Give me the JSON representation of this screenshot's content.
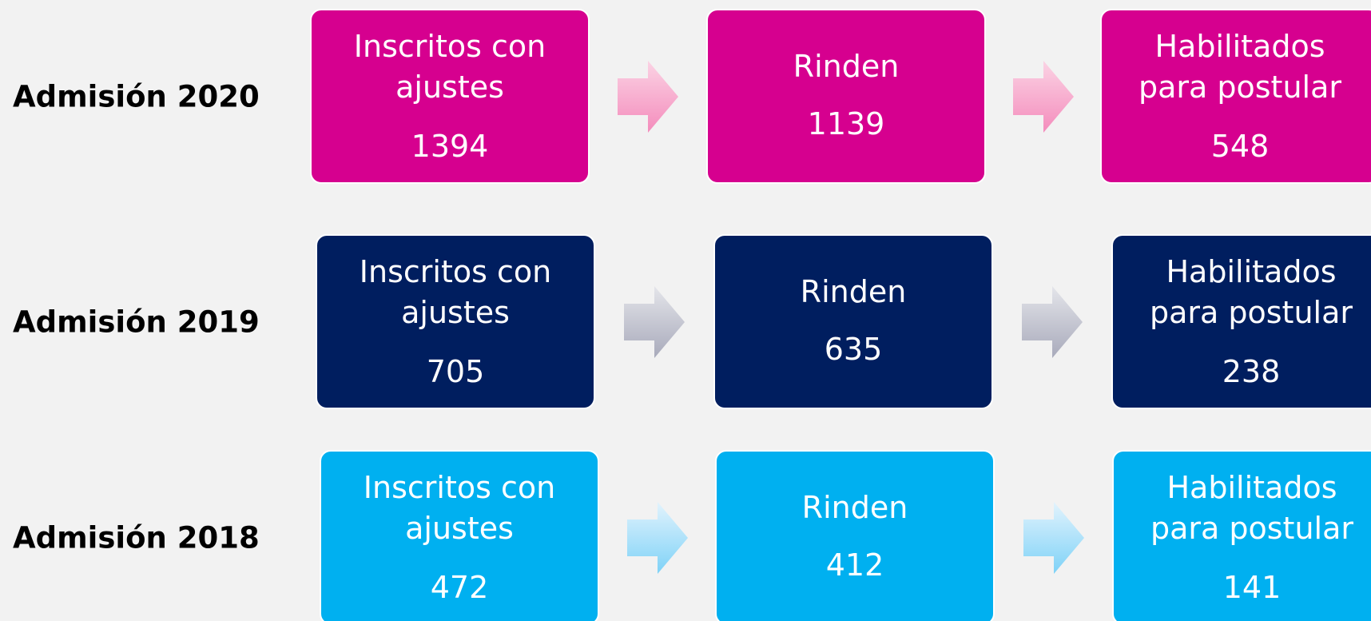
{
  "rows": [
    {
      "label": "Admisión 2020",
      "color": "#d6008f",
      "steps": [
        {
          "lines": [
            "Inscritos con",
            "ajustes"
          ],
          "value": "1394"
        },
        {
          "lines": [
            "Rinden"
          ],
          "value": "1139"
        },
        {
          "lines": [
            "Habilitados",
            "para postular"
          ],
          "value": "548"
        }
      ]
    },
    {
      "label": "Admisión 2019",
      "color": "#001e5f",
      "steps": [
        {
          "lines": [
            "Inscritos con",
            "ajustes"
          ],
          "value": "705"
        },
        {
          "lines": [
            "Rinden"
          ],
          "value": "635"
        },
        {
          "lines": [
            "Habilitados",
            "para postular"
          ],
          "value": "238"
        }
      ]
    },
    {
      "label": "Admisión 2018",
      "color": "#00b0f0",
      "steps": [
        {
          "lines": [
            "Inscritos con",
            "ajustes"
          ],
          "value": "472"
        },
        {
          "lines": [
            "Rinden"
          ],
          "value": "412"
        },
        {
          "lines": [
            "Habilitados",
            "para postular"
          ],
          "value": "141"
        }
      ]
    }
  ]
}
